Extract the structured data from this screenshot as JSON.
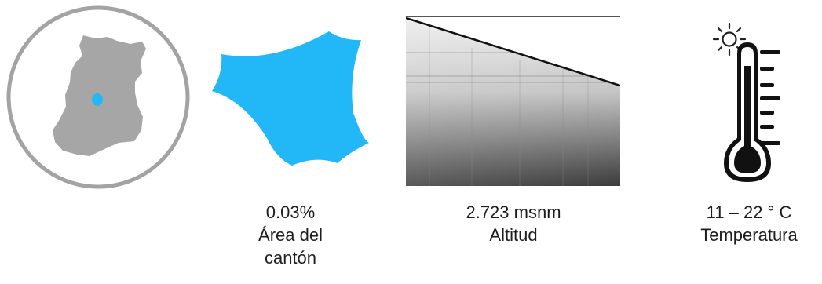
{
  "colors": {
    "region_gray": "#a6a6a6",
    "ring_gray": "#a3a3a3",
    "accent_blue": "#22b8f7",
    "icon_black": "#111111",
    "sun_black": "#222222"
  },
  "icons": {
    "locator": "region-locator-map-icon",
    "area_shape": "parish-shape-icon",
    "altitude": "altitude-gradient-icon",
    "thermometer": "thermometer-with-sun-icon"
  },
  "area": {
    "value": "0.03%",
    "label_line1": "Área del",
    "label_line2": "cantón"
  },
  "altitude": {
    "value": "2.723 msnm",
    "label": "Altitud"
  },
  "temperature": {
    "value": "11 – 22 ° C",
    "label": "Temperatura"
  }
}
